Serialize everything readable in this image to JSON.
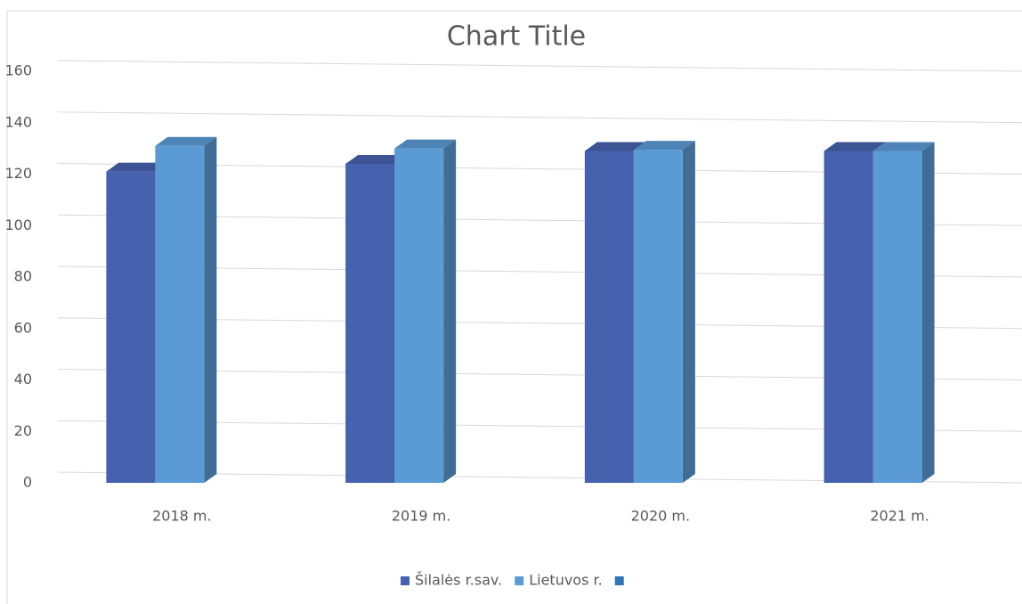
{
  "chart_data": {
    "type": "bar3d",
    "title": "Chart Title",
    "categories": [
      "2018 m.",
      "2019 m.",
      "2020 m.",
      "2021 m."
    ],
    "series": [
      {
        "name": "Šilalės r.sav.",
        "color": "#4662ae",
        "values": [
          121,
          124,
          129,
          129
        ]
      },
      {
        "name": "Lietuvos r.",
        "color": "#5b9bd5",
        "values": [
          131,
          130,
          129.5,
          129
        ]
      },
      {
        "name": null,
        "color": "#2e75b6",
        "values": [
          null,
          null,
          null,
          null
        ]
      }
    ],
    "ylim": [
      0,
      160
    ],
    "yticks": [
      0,
      20,
      40,
      60,
      80,
      100,
      120,
      140,
      160
    ],
    "grid": true,
    "legend": "bottom"
  }
}
